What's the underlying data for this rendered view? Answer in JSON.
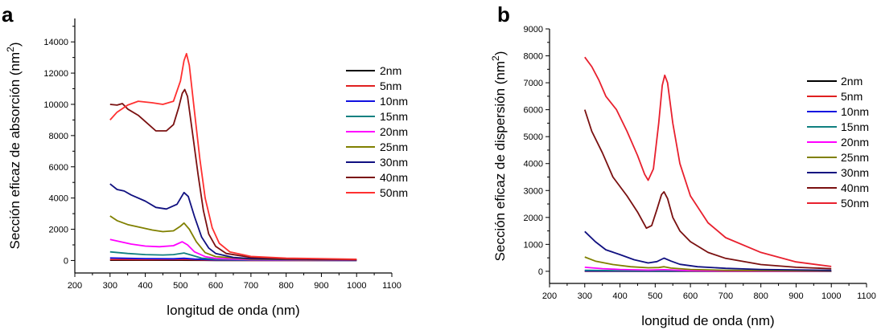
{
  "chart_data": [
    {
      "panel": "a",
      "type": "line",
      "xlabel": "longitud de onda (nm)",
      "ylabel": "Sección eficaz de absorción (nm",
      "ylabel_sup": "2",
      "ylabel_close": ")",
      "xlim": [
        200,
        1100
      ],
      "ylim": [
        -800,
        15500
      ],
      "xticks": [
        200,
        300,
        400,
        500,
        600,
        700,
        800,
        900,
        1000,
        1100
      ],
      "yticks": [
        0,
        2000,
        4000,
        6000,
        8000,
        10000,
        12000,
        14000
      ],
      "series": [
        {
          "name": "2nm",
          "color": "#000000",
          "points": [
            [
              300,
              20
            ],
            [
              400,
              15
            ],
            [
              500,
              18
            ],
            [
              600,
              5
            ],
            [
              700,
              2
            ],
            [
              1000,
              1
            ]
          ]
        },
        {
          "name": "5nm",
          "color": "#e02020",
          "points": [
            [
              300,
              60
            ],
            [
              400,
              50
            ],
            [
              500,
              60
            ],
            [
              520,
              55
            ],
            [
              600,
              15
            ],
            [
              700,
              5
            ],
            [
              1000,
              2
            ]
          ]
        },
        {
          "name": "10nm",
          "color": "#1010e0",
          "points": [
            [
              300,
              160
            ],
            [
              400,
              120
            ],
            [
              480,
              110
            ],
            [
              510,
              140
            ],
            [
              540,
              90
            ],
            [
              600,
              40
            ],
            [
              700,
              15
            ],
            [
              1000,
              5
            ]
          ]
        },
        {
          "name": "15nm",
          "color": "#108080",
          "points": [
            [
              300,
              550
            ],
            [
              350,
              450
            ],
            [
              400,
              380
            ],
            [
              450,
              350
            ],
            [
              480,
              380
            ],
            [
              510,
              480
            ],
            [
              530,
              350
            ],
            [
              560,
              150
            ],
            [
              600,
              70
            ],
            [
              700,
              30
            ],
            [
              1000,
              10
            ]
          ]
        },
        {
          "name": "20nm",
          "color": "#ff00ff",
          "points": [
            [
              300,
              1350
            ],
            [
              330,
              1200
            ],
            [
              360,
              1050
            ],
            [
              400,
              920
            ],
            [
              440,
              880
            ],
            [
              480,
              950
            ],
            [
              505,
              1200
            ],
            [
              520,
              1000
            ],
            [
              540,
              550
            ],
            [
              570,
              250
            ],
            [
              600,
              130
            ],
            [
              700,
              50
            ],
            [
              1000,
              20
            ]
          ]
        },
        {
          "name": "25nm",
          "color": "#808000",
          "points": [
            [
              300,
              2850
            ],
            [
              320,
              2550
            ],
            [
              350,
              2300
            ],
            [
              380,
              2150
            ],
            [
              420,
              1950
            ],
            [
              450,
              1850
            ],
            [
              480,
              1900
            ],
            [
              500,
              2200
            ],
            [
              510,
              2400
            ],
            [
              525,
              2000
            ],
            [
              545,
              1200
            ],
            [
              570,
              500
            ],
            [
              600,
              250
            ],
            [
              700,
              80
            ],
            [
              1000,
              30
            ]
          ]
        },
        {
          "name": "30nm",
          "color": "#101080",
          "points": [
            [
              300,
              4900
            ],
            [
              320,
              4550
            ],
            [
              340,
              4450
            ],
            [
              360,
              4200
            ],
            [
              400,
              3800
            ],
            [
              430,
              3400
            ],
            [
              460,
              3300
            ],
            [
              490,
              3600
            ],
            [
              510,
              4350
            ],
            [
              522,
              4100
            ],
            [
              540,
              2800
            ],
            [
              560,
              1500
            ],
            [
              580,
              800
            ],
            [
              600,
              450
            ],
            [
              650,
              200
            ],
            [
              700,
              120
            ],
            [
              800,
              80
            ],
            [
              1000,
              40
            ]
          ]
        },
        {
          "name": "40nm",
          "color": "#7a1010",
          "points": [
            [
              300,
              10000
            ],
            [
              320,
              9950
            ],
            [
              335,
              10050
            ],
            [
              350,
              9700
            ],
            [
              380,
              9300
            ],
            [
              410,
              8700
            ],
            [
              430,
              8300
            ],
            [
              460,
              8300
            ],
            [
              480,
              8700
            ],
            [
              495,
              9800
            ],
            [
              505,
              10700
            ],
            [
              512,
              10950
            ],
            [
              520,
              10500
            ],
            [
              535,
              8000
            ],
            [
              550,
              5500
            ],
            [
              565,
              3200
            ],
            [
              580,
              1700
            ],
            [
              600,
              900
            ],
            [
              630,
              450
            ],
            [
              700,
              200
            ],
            [
              800,
              110
            ],
            [
              1000,
              60
            ]
          ]
        },
        {
          "name": "50nm",
          "color": "#ff3030",
          "points": [
            [
              300,
              9000
            ],
            [
              320,
              9500
            ],
            [
              350,
              9950
            ],
            [
              380,
              10200
            ],
            [
              420,
              10100
            ],
            [
              450,
              10000
            ],
            [
              480,
              10200
            ],
            [
              500,
              11500
            ],
            [
              510,
              12800
            ],
            [
              517,
              13250
            ],
            [
              525,
              12500
            ],
            [
              540,
              9500
            ],
            [
              555,
              6500
            ],
            [
              570,
              4000
            ],
            [
              590,
              2100
            ],
            [
              610,
              1100
            ],
            [
              640,
              550
            ],
            [
              700,
              260
            ],
            [
              800,
              150
            ],
            [
              1000,
              80
            ]
          ]
        }
      ]
    },
    {
      "panel": "b",
      "type": "line",
      "xlabel": "longitud de onda (nm)",
      "ylabel": "Sección eficaz de dispersión (nm",
      "ylabel_sup": "2",
      "ylabel_close": ")",
      "xlim": [
        200,
        1100
      ],
      "ylim": [
        -450,
        9000
      ],
      "xticks": [
        200,
        300,
        400,
        500,
        600,
        700,
        800,
        900,
        1000,
        1100
      ],
      "yticks": [
        0,
        1000,
        2000,
        3000,
        4000,
        5000,
        6000,
        7000,
        8000,
        9000
      ],
      "series": [
        {
          "name": "2nm",
          "color": "#000000",
          "points": [
            [
              300,
              2
            ],
            [
              1000,
              0
            ]
          ]
        },
        {
          "name": "5nm",
          "color": "#e02020",
          "points": [
            [
              300,
              5
            ],
            [
              1000,
              1
            ]
          ]
        },
        {
          "name": "10nm",
          "color": "#1010e0",
          "points": [
            [
              300,
              15
            ],
            [
              500,
              8
            ],
            [
              530,
              10
            ],
            [
              1000,
              2
            ]
          ]
        },
        {
          "name": "15nm",
          "color": "#108080",
          "points": [
            [
              300,
              40
            ],
            [
              400,
              25
            ],
            [
              500,
              20
            ],
            [
              530,
              25
            ],
            [
              600,
              10
            ],
            [
              1000,
              3
            ]
          ]
        },
        {
          "name": "20nm",
          "color": "#ff00ff",
          "points": [
            [
              300,
              150
            ],
            [
              350,
              100
            ],
            [
              400,
              70
            ],
            [
              480,
              45
            ],
            [
              525,
              60
            ],
            [
              600,
              25
            ],
            [
              700,
              12
            ],
            [
              1000,
              5
            ]
          ]
        },
        {
          "name": "25nm",
          "color": "#808000",
          "points": [
            [
              300,
              530
            ],
            [
              330,
              380
            ],
            [
              380,
              250
            ],
            [
              430,
              170
            ],
            [
              480,
              130
            ],
            [
              510,
              140
            ],
            [
              525,
              170
            ],
            [
              545,
              120
            ],
            [
              600,
              70
            ],
            [
              700,
              35
            ],
            [
              1000,
              12
            ]
          ]
        },
        {
          "name": "30nm",
          "color": "#101080",
          "points": [
            [
              300,
              1480
            ],
            [
              330,
              1100
            ],
            [
              360,
              800
            ],
            [
              400,
              620
            ],
            [
              440,
              430
            ],
            [
              480,
              310
            ],
            [
              505,
              360
            ],
            [
              525,
              490
            ],
            [
              545,
              380
            ],
            [
              570,
              260
            ],
            [
              620,
              170
            ],
            [
              700,
              110
            ],
            [
              800,
              70
            ],
            [
              1000,
              35
            ]
          ]
        },
        {
          "name": "40nm",
          "color": "#7a1010",
          "points": [
            [
              300,
              6000
            ],
            [
              320,
              5200
            ],
            [
              350,
              4400
            ],
            [
              380,
              3500
            ],
            [
              420,
              2800
            ],
            [
              450,
              2200
            ],
            [
              475,
              1600
            ],
            [
              490,
              1700
            ],
            [
              505,
              2300
            ],
            [
              518,
              2850
            ],
            [
              525,
              2950
            ],
            [
              535,
              2700
            ],
            [
              550,
              2000
            ],
            [
              570,
              1500
            ],
            [
              600,
              1100
            ],
            [
              650,
              700
            ],
            [
              700,
              480
            ],
            [
              800,
              250
            ],
            [
              900,
              150
            ],
            [
              1000,
              100
            ]
          ]
        },
        {
          "name": "50nm",
          "color": "#e8202e",
          "points": [
            [
              300,
              7950
            ],
            [
              320,
              7600
            ],
            [
              340,
              7100
            ],
            [
              360,
              6500
            ],
            [
              390,
              6000
            ],
            [
              420,
              5200
            ],
            [
              450,
              4300
            ],
            [
              470,
              3600
            ],
            [
              480,
              3380
            ],
            [
              495,
              3800
            ],
            [
              510,
              5500
            ],
            [
              520,
              6900
            ],
            [
              527,
              7280
            ],
            [
              535,
              7000
            ],
            [
              550,
              5500
            ],
            [
              570,
              4000
            ],
            [
              600,
              2800
            ],
            [
              650,
              1800
            ],
            [
              700,
              1250
            ],
            [
              800,
              700
            ],
            [
              900,
              350
            ],
            [
              1000,
              180
            ]
          ]
        }
      ]
    }
  ]
}
